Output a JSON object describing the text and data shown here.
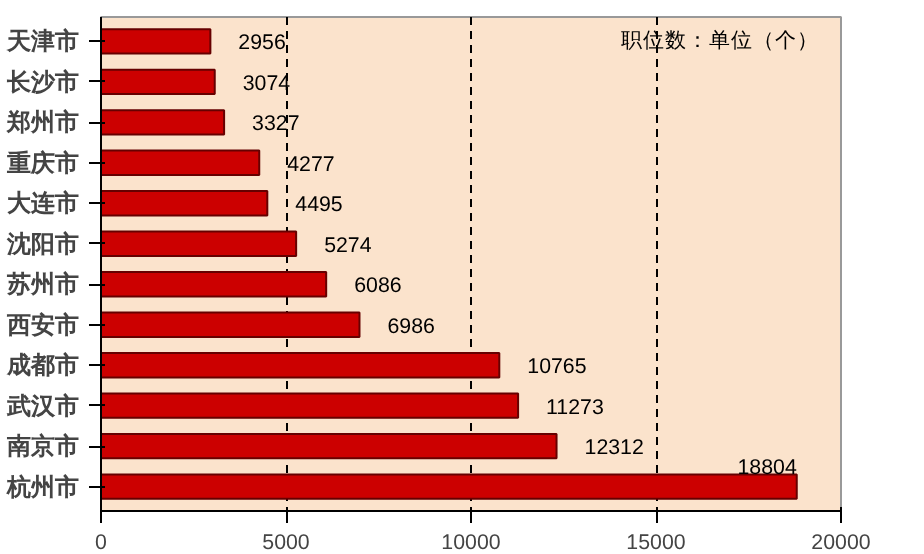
{
  "chart_data": {
    "type": "bar",
    "orientation": "horizontal",
    "categories": [
      "天津市",
      "长沙市",
      "郑州市",
      "重庆市",
      "大连市",
      "沈阳市",
      "苏州市",
      "西安市",
      "成都市",
      "武汉市",
      "南京市",
      "杭州市"
    ],
    "values": [
      2956,
      3074,
      3327,
      4277,
      4495,
      5274,
      6086,
      6986,
      10765,
      11273,
      12312,
      18804
    ],
    "color": "#cc0000",
    "xlim": [
      0,
      20000
    ],
    "xticks": [
      0,
      5000,
      10000,
      15000,
      20000
    ],
    "grid": "x",
    "data_labels": true,
    "annotations": [
      "职位数：单位（个）"
    ]
  }
}
